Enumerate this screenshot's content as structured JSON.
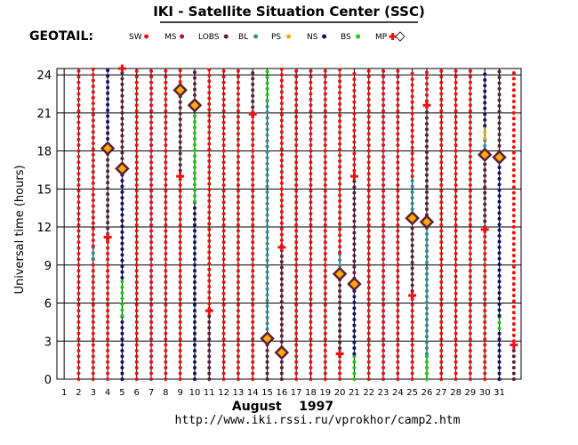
{
  "chart_data": {
    "type": "scatter",
    "title": "IKI - Satellite Situation Center (SSC)",
    "satellite": "GEOTAIL:",
    "ylabel": "Universal time (hours)",
    "xlabel": "August    1997",
    "url": "http://www.iki.rssi.ru/vprokhor/camp2.htm",
    "ylim": [
      0,
      24.5
    ],
    "xlim": [
      0.5,
      32.5
    ],
    "yticks": [
      "0",
      "3",
      "6",
      "9",
      "12",
      "15",
      "18",
      "21",
      "24"
    ],
    "xticks": [
      "1",
      "2",
      "3",
      "4",
      "5",
      "6",
      "7",
      "8",
      "9",
      "10",
      "11",
      "12",
      "13",
      "14",
      "15",
      "16",
      "17",
      "18",
      "19",
      "20",
      "21",
      "22",
      "23",
      "24",
      "25",
      "26",
      "27",
      "28",
      "29",
      "30",
      "31"
    ],
    "legend": [
      {
        "label": "SW",
        "color": "#ee1111",
        "marker": "dot"
      },
      {
        "label": "MS",
        "color": "#aa1133",
        "marker": "dot"
      },
      {
        "label": "LOBS",
        "color": "#5a1f3a",
        "marker": "dot"
      },
      {
        "label": "BL",
        "color": "#2a8c9c",
        "marker": "dot"
      },
      {
        "label": "PS",
        "color": "#ffaa00",
        "marker": "dot"
      },
      {
        "label": "NS",
        "color": "#111166",
        "marker": "dot"
      },
      {
        "label": "BS",
        "color": "#11cc11",
        "marker": "dot"
      },
      {
        "label": "MP",
        "color": "#ee1111",
        "marker": "cross"
      },
      {
        "label": "",
        "color": "#5a1f3a",
        "marker": "diamond"
      }
    ],
    "days": [
      {
        "x": 2,
        "segments": [
          [
            "SW",
            0,
            24.5
          ]
        ]
      },
      {
        "x": 3,
        "segments": [
          [
            "SW",
            0,
            9.5
          ],
          [
            "BL",
            9.5,
            10.5
          ],
          [
            "SW",
            10.5,
            24.5
          ]
        ]
      },
      {
        "x": 4,
        "segments": [
          [
            "SW",
            0,
            11
          ],
          [
            "LOBS",
            11,
            18.5
          ],
          [
            "NS",
            18.5,
            24.5
          ]
        ]
      },
      {
        "x": 5,
        "segments": [
          [
            "NS",
            0,
            5
          ],
          [
            "BS",
            5,
            8
          ],
          [
            "NS",
            8,
            16.5
          ],
          [
            "LOBS",
            16.5,
            24.5
          ]
        ]
      },
      {
        "x": 6,
        "segments": [
          [
            "SW",
            0,
            24.5
          ]
        ]
      },
      {
        "x": 7,
        "segments": [
          [
            "SW",
            0,
            24.5
          ]
        ]
      },
      {
        "x": 8,
        "segments": [
          [
            "SW",
            0,
            24.5
          ]
        ]
      },
      {
        "x": 9,
        "segments": [
          [
            "SW",
            0,
            16
          ],
          [
            "LOBS",
            16,
            23
          ],
          [
            "SW",
            23,
            24.5
          ]
        ]
      },
      {
        "x": 10,
        "segments": [
          [
            "NS",
            0,
            14
          ],
          [
            "BS",
            14,
            21.5
          ],
          [
            "LOBS",
            21.5,
            24.5
          ]
        ]
      },
      {
        "x": 11,
        "segments": [
          [
            "LOBS",
            0,
            5.5
          ],
          [
            "SW",
            5.5,
            24.5
          ]
        ]
      },
      {
        "x": 12,
        "segments": [
          [
            "SW",
            0,
            24.5
          ]
        ]
      },
      {
        "x": 13,
        "segments": [
          [
            "SW",
            0,
            24.5
          ]
        ]
      },
      {
        "x": 14,
        "segments": [
          [
            "SW",
            0,
            21
          ],
          [
            "LOBS",
            21,
            24.5
          ]
        ]
      },
      {
        "x": 15,
        "segments": [
          [
            "LOBS",
            0,
            3.5
          ],
          [
            "BL",
            3.5,
            22
          ],
          [
            "BS",
            22,
            24.5
          ]
        ]
      },
      {
        "x": 16,
        "segments": [
          [
            "LOBS",
            0,
            2.5
          ],
          [
            "LOBS",
            2.5,
            10.5
          ],
          [
            "SW",
            10.5,
            24.5
          ]
        ]
      },
      {
        "x": 17,
        "segments": [
          [
            "SW",
            0,
            24.5
          ]
        ]
      },
      {
        "x": 18,
        "segments": [
          [
            "SW",
            0,
            24.5
          ]
        ]
      },
      {
        "x": 19,
        "segments": [
          [
            "SW",
            0,
            24.5
          ]
        ]
      },
      {
        "x": 20,
        "segments": [
          [
            "SW",
            0,
            2
          ],
          [
            "LOBS",
            2,
            8.5
          ],
          [
            "BL",
            8.5,
            10
          ],
          [
            "SW",
            10,
            24.5
          ]
        ]
      },
      {
        "x": 21,
        "segments": [
          [
            "BS",
            0,
            2
          ],
          [
            "NS",
            2,
            7.5
          ],
          [
            "LOBS",
            7.5,
            16
          ],
          [
            "SW",
            16,
            24.5
          ]
        ]
      },
      {
        "x": 22,
        "segments": [
          [
            "SW",
            0,
            24.5
          ]
        ]
      },
      {
        "x": 23,
        "segments": [
          [
            "SW",
            0,
            24.5
          ]
        ]
      },
      {
        "x": 24,
        "segments": [
          [
            "SW",
            0,
            24.5
          ]
        ]
      },
      {
        "x": 25,
        "segments": [
          [
            "SW",
            0,
            6.5
          ],
          [
            "LOBS",
            6.5,
            12.5
          ],
          [
            "BL",
            12.5,
            16
          ],
          [
            "SW",
            16,
            24.5
          ]
        ]
      },
      {
        "x": 26,
        "segments": [
          [
            "BS",
            0,
            2
          ],
          [
            "BL",
            2,
            12.5
          ],
          [
            "LOBS",
            12.5,
            21.5
          ],
          [
            "SW",
            21.5,
            24.5
          ]
        ]
      },
      {
        "x": 27,
        "segments": [
          [
            "SW",
            0,
            24.5
          ]
        ]
      },
      {
        "x": 28,
        "segments": [
          [
            "SW",
            0,
            24.5
          ]
        ]
      },
      {
        "x": 29,
        "segments": [
          [
            "SW",
            0,
            24.5
          ]
        ]
      },
      {
        "x": 30,
        "segments": [
          [
            "SW",
            0,
            12
          ],
          [
            "LOBS",
            12,
            17.5
          ],
          [
            "BL",
            17.5,
            19
          ],
          [
            "PS",
            19,
            20
          ],
          [
            "NS",
            20,
            24.5
          ]
        ]
      },
      {
        "x": 31,
        "segments": [
          [
            "NS",
            0,
            4
          ],
          [
            "BS",
            4,
            5
          ],
          [
            "NS",
            5,
            17.5
          ],
          [
            "LOBS",
            17.5,
            24.5
          ]
        ]
      },
      {
        "x": 32,
        "segments": [
          [
            "LOBS",
            0,
            3
          ],
          [
            "SW",
            3,
            24.5
          ]
        ]
      }
    ],
    "crossings": [
      [
        4,
        11.2
      ],
      [
        5,
        24.5
      ],
      [
        9,
        16
      ],
      [
        11,
        5.4
      ],
      [
        14,
        20.9
      ],
      [
        16,
        10.4
      ],
      [
        20,
        2
      ],
      [
        21,
        16
      ],
      [
        25,
        6.6
      ],
      [
        26,
        21.6
      ],
      [
        30,
        11.8
      ],
      [
        32,
        2.7
      ]
    ],
    "diamonds": [
      [
        4,
        18.2
      ],
      [
        5,
        16.6
      ],
      [
        9,
        22.8
      ],
      [
        10,
        21.6
      ],
      [
        15,
        3.2
      ],
      [
        16,
        2.1
      ],
      [
        20,
        8.3
      ],
      [
        21,
        7.5
      ],
      [
        25,
        12.7
      ],
      [
        26,
        12.4
      ],
      [
        30,
        17.7
      ],
      [
        31,
        17.5
      ]
    ]
  }
}
